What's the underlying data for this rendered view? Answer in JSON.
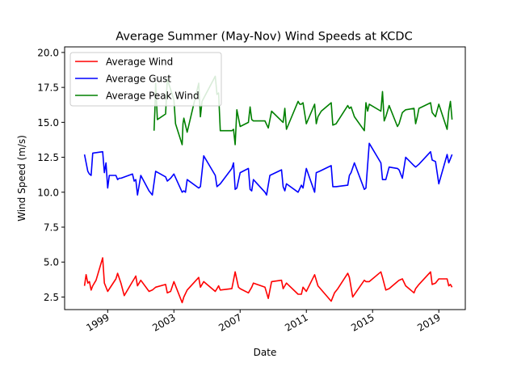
{
  "chart_data": {
    "type": "line",
    "title": "Average Summer (May-Nov) Wind Speeds at KCDC",
    "xlabel": "Date",
    "ylabel": "Wind Speed (m/s)",
    "xlim": [
      1996.4,
      2020.6
    ],
    "ylim": [
      1.6,
      20.4
    ],
    "x_ticks": [
      1999,
      2003,
      2007,
      2011,
      2015,
      2019
    ],
    "y_ticks": [
      2.5,
      5.0,
      7.5,
      10.0,
      12.5,
      15.0,
      17.5,
      20.0
    ],
    "x_tick_labels": [
      "1999",
      "2003",
      "2007",
      "2011",
      "2015",
      "2019"
    ],
    "y_tick_labels": [
      "2.5",
      "5.0",
      "7.5",
      "10.0",
      "12.5",
      "15.0",
      "17.5",
      "20.0"
    ],
    "legend_position": "upper left",
    "grid": false,
    "series": [
      {
        "name": "Average Wind",
        "color": "#ff0000",
        "x": [
          1997.6,
          1997.7,
          1997.8,
          1997.9,
          1998.0,
          1998.1,
          1998.3,
          1998.7,
          1998.8,
          1999.0,
          1999.5,
          1999.6,
          1999.8,
          2000.0,
          2000.5,
          2000.6,
          2000.7,
          2000.8,
          2001.0,
          2001.5,
          2001.7,
          2001.9,
          2002.5,
          2002.6,
          2002.8,
          2003.0,
          2003.5,
          2003.6,
          2003.8,
          2004.5,
          2004.6,
          2004.8,
          2005.5,
          2005.6,
          2005.7,
          2005.8,
          2006.5,
          2006.7,
          2006.9,
          2007.0,
          2007.5,
          2007.7,
          2007.8,
          2008.5,
          2008.7,
          2008.9,
          2009.5,
          2009.6,
          2009.8,
          2010.5,
          2010.7,
          2010.8,
          2011.0,
          2011.5,
          2011.7,
          2012.5,
          2012.7,
          2012.9,
          2013.5,
          2013.6,
          2013.8,
          2014.5,
          2014.6,
          2014.8,
          2015.5,
          2015.6,
          2015.8,
          2016.0,
          2016.5,
          2016.6,
          2016.8,
          2017.0,
          2017.5,
          2017.6,
          2017.8,
          2018.5,
          2018.6,
          2018.8,
          2019.0,
          2019.5,
          2019.6,
          2019.7,
          2019.8
        ],
        "y": [
          3.3,
          4.1,
          3.5,
          3.6,
          3.0,
          3.3,
          3.7,
          5.3,
          3.5,
          2.9,
          3.8,
          4.2,
          3.5,
          2.6,
          3.6,
          3.8,
          4.0,
          3.3,
          3.7,
          2.9,
          3.0,
          3.2,
          3.4,
          2.8,
          2.9,
          3.6,
          2.1,
          2.5,
          3.0,
          3.9,
          3.2,
          3.6,
          2.9,
          3.1,
          3.3,
          3.0,
          3.1,
          4.3,
          3.2,
          3.1,
          2.8,
          3.2,
          3.5,
          3.2,
          2.4,
          3.6,
          3.7,
          3.1,
          3.5,
          2.7,
          2.7,
          3.2,
          2.9,
          4.1,
          3.3,
          2.2,
          2.8,
          3.1,
          4.2,
          3.9,
          2.5,
          3.7,
          3.6,
          3.6,
          4.3,
          3.9,
          3.0,
          3.1,
          3.6,
          3.7,
          3.8,
          3.3,
          2.8,
          3.1,
          3.4,
          4.3,
          3.4,
          3.5,
          3.8,
          3.8,
          3.3,
          3.4,
          3.2
        ]
      },
      {
        "name": "Average Gust",
        "color": "#0000ff",
        "x": [
          1997.6,
          1997.8,
          1997.9,
          1998.0,
          1998.1,
          1998.7,
          1998.8,
          1998.9,
          1999.0,
          1999.1,
          1999.5,
          1999.6,
          1999.7,
          1999.8,
          2000.5,
          2000.6,
          2000.7,
          2000.8,
          2001.0,
          2001.5,
          2001.7,
          2001.9,
          2002.5,
          2002.6,
          2002.8,
          2003.0,
          2003.5,
          2003.6,
          2003.7,
          2003.8,
          2004.5,
          2004.6,
          2004.8,
          2005.5,
          2005.6,
          2005.8,
          2006.5,
          2006.6,
          2006.7,
          2006.8,
          2007.0,
          2007.5,
          2007.6,
          2007.7,
          2007.8,
          2008.5,
          2008.6,
          2008.8,
          2009.5,
          2009.6,
          2009.7,
          2009.8,
          2010.5,
          2010.7,
          2010.8,
          2011.0,
          2011.5,
          2011.6,
          2011.8,
          2012.5,
          2012.6,
          2012.8,
          2013.5,
          2013.6,
          2013.7,
          2013.9,
          2014.5,
          2014.6,
          2014.8,
          2015.5,
          2015.6,
          2015.8,
          2016.0,
          2016.5,
          2016.6,
          2016.8,
          2017.0,
          2017.5,
          2017.6,
          2017.8,
          2018.5,
          2018.6,
          2018.8,
          2019.0,
          2019.5,
          2019.6,
          2019.7,
          2019.8
        ],
        "y": [
          12.7,
          11.5,
          11.3,
          11.2,
          12.8,
          12.9,
          11.4,
          12.1,
          10.3,
          11.2,
          11.2,
          10.9,
          11.0,
          11.0,
          11.3,
          10.8,
          10.9,
          9.8,
          11.2,
          10.1,
          9.8,
          11.5,
          11.1,
          10.8,
          11.0,
          11.3,
          10.0,
          10.1,
          10.0,
          10.9,
          10.3,
          10.4,
          12.6,
          11.2,
          10.4,
          10.6,
          11.7,
          12.1,
          10.2,
          10.3,
          11.4,
          11.7,
          10.2,
          10.1,
          10.9,
          10.0,
          9.8,
          11.2,
          11.6,
          10.4,
          10.1,
          10.6,
          10.0,
          10.5,
          10.3,
          11.7,
          10.0,
          11.4,
          11.5,
          11.9,
          10.4,
          10.4,
          10.5,
          11.2,
          11.4,
          12.1,
          10.2,
          10.3,
          13.5,
          12.1,
          10.9,
          10.9,
          11.8,
          11.7,
          11.6,
          11.0,
          12.5,
          11.9,
          11.8,
          12.0,
          12.9,
          12.3,
          12.2,
          10.6,
          12.7,
          12.1,
          12.4,
          12.7
        ]
      },
      {
        "name": "Average Peak Wind",
        "color": "#008000",
        "x": [
          2001.8,
          2001.85,
          2001.9,
          2002.0,
          2002.5,
          2002.6,
          2003.0,
          2003.1,
          2003.5,
          2003.55,
          2003.6,
          2003.7,
          2003.8,
          2004.5,
          2004.6,
          2004.7,
          2005.5,
          2005.6,
          2005.7,
          2005.8,
          2006.5,
          2006.6,
          2006.7,
          2006.8,
          2007.0,
          2007.5,
          2007.6,
          2007.7,
          2007.8,
          2008.5,
          2008.7,
          2008.9,
          2009.5,
          2009.6,
          2009.7,
          2009.8,
          2010.5,
          2010.6,
          2010.7,
          2010.8,
          2011.0,
          2011.5,
          2011.6,
          2011.7,
          2011.9,
          2012.5,
          2012.6,
          2012.8,
          2013.5,
          2013.6,
          2013.7,
          2013.9,
          2014.5,
          2014.6,
          2014.7,
          2014.8,
          2015.5,
          2015.6,
          2015.7,
          2015.8,
          2016.0,
          2016.5,
          2016.6,
          2016.8,
          2017.0,
          2017.5,
          2017.6,
          2017.7,
          2017.8,
          2018.5,
          2018.6,
          2018.8,
          2019.0,
          2019.5,
          2019.6,
          2019.7,
          2019.8
        ],
        "y": [
          14.4,
          15.8,
          17.8,
          15.2,
          15.6,
          18.1,
          16.6,
          14.9,
          13.4,
          14.9,
          15.3,
          14.8,
          14.3,
          17.8,
          15.4,
          16.5,
          18.3,
          17.0,
          17.1,
          14.4,
          14.4,
          14.5,
          13.4,
          15.9,
          14.7,
          15.0,
          16.1,
          15.2,
          15.1,
          15.1,
          14.6,
          15.8,
          15.1,
          15.0,
          16.0,
          14.5,
          16.5,
          16.3,
          16.3,
          16.4,
          14.9,
          16.3,
          14.9,
          15.4,
          15.8,
          16.4,
          14.8,
          14.9,
          16.2,
          16.0,
          16.1,
          15.4,
          14.4,
          16.4,
          15.8,
          16.3,
          15.8,
          17.2,
          15.1,
          15.4,
          16.2,
          14.7,
          14.9,
          15.7,
          15.9,
          16.0,
          14.9,
          15.4,
          16.0,
          16.4,
          15.7,
          15.4,
          16.3,
          14.5,
          15.8,
          16.5,
          15.2
        ]
      }
    ]
  }
}
